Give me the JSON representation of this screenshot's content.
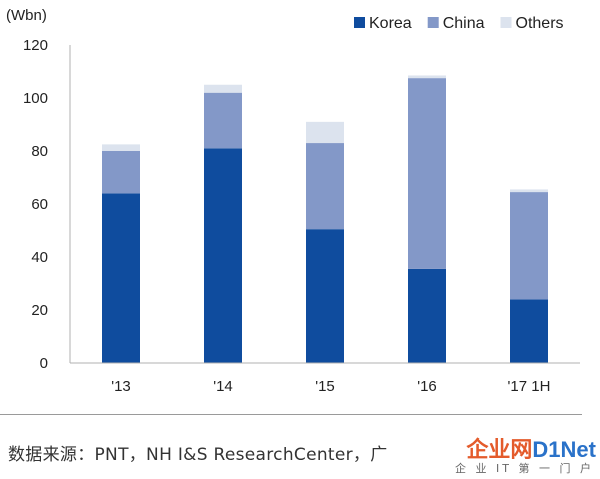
{
  "chart_data": {
    "type": "bar",
    "stacked": true,
    "unit_label": "(Wbn)",
    "categories": [
      "'13",
      "'14",
      "'15",
      "'16",
      "'17 1H"
    ],
    "series": [
      {
        "name": "Korea",
        "values": [
          64,
          81,
          50.5,
          35.5,
          24
        ],
        "color": "#0f4c9e"
      },
      {
        "name": "China",
        "values": [
          16,
          21,
          32.5,
          72,
          40.5
        ],
        "color": "#8398c8"
      },
      {
        "name": "Others",
        "values": [
          2.5,
          3,
          8,
          1,
          1
        ],
        "color": "#dce3ee"
      }
    ],
    "ylim": [
      0,
      120
    ],
    "yticks": [
      0,
      20,
      40,
      60,
      80,
      100,
      120
    ],
    "legend_position": "top-right",
    "grid": false
  },
  "source": "数据来源：PNT，NH I&S ResearchCenter，广",
  "watermark": {
    "main_a": "企业网",
    "main_b": "D1Net",
    "sub": "企 业 IT 第 一 门 户"
  }
}
